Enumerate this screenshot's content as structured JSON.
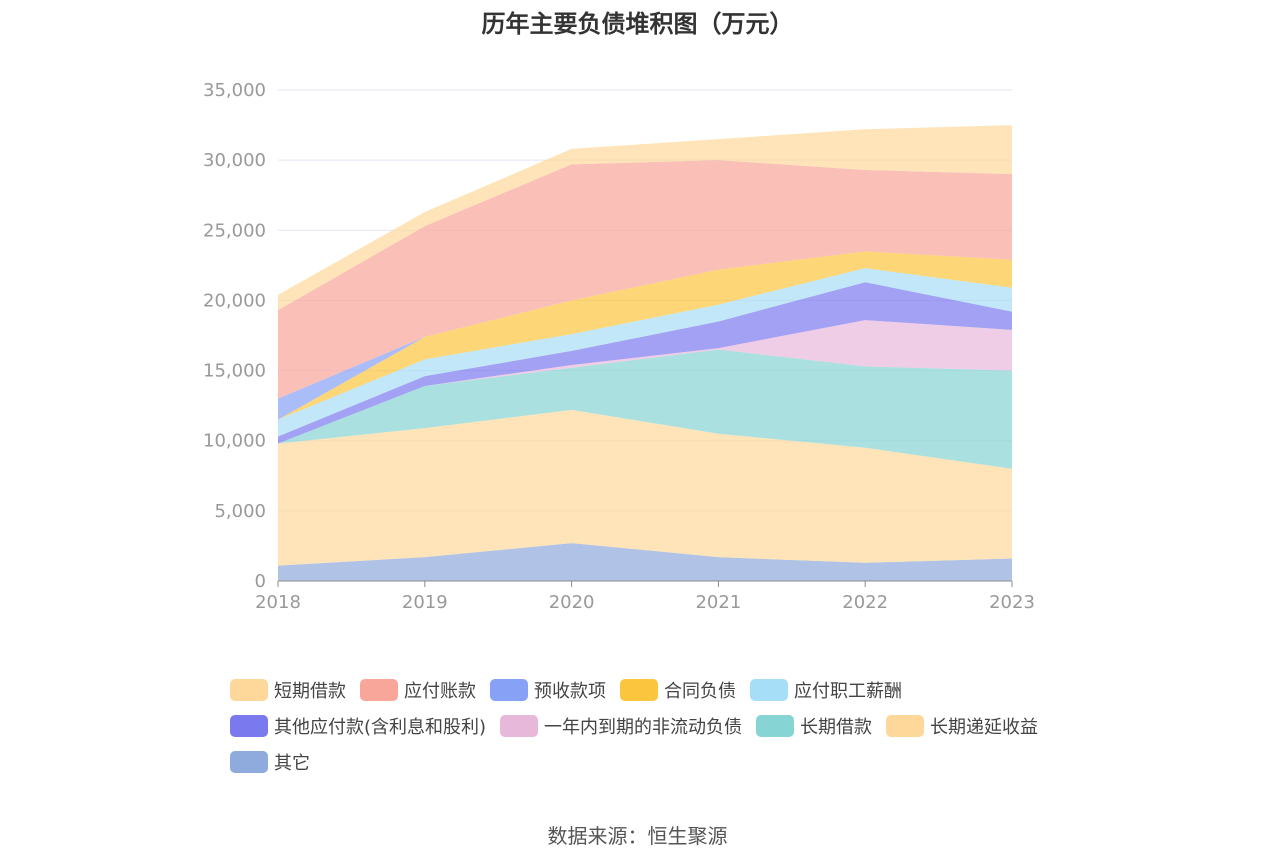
{
  "title": "历年主要负债堆积图（万元）",
  "source": "数据来源：恒生聚源",
  "chart_data": {
    "type": "area",
    "stacked": true,
    "x": [
      "2018",
      "2019",
      "2020",
      "2021",
      "2022",
      "2023"
    ],
    "ylim": [
      0,
      35000
    ],
    "yticks": [
      0,
      5000,
      10000,
      15000,
      20000,
      25000,
      30000,
      35000
    ],
    "ytick_labels": [
      "0",
      "5,000",
      "10,000",
      "15,000",
      "20,000",
      "25,000",
      "30,000",
      "35,000"
    ],
    "grid": true,
    "legend_position": "bottom",
    "series": [
      {
        "name": "其它",
        "color": "#8FAADC",
        "values": [
          1100,
          1700,
          2700,
          1700,
          1300,
          1600
        ]
      },
      {
        "name": "长期递延收益",
        "color": "#FDD89A",
        "values": [
          8700,
          9200,
          9500,
          8800,
          8200,
          6400
        ]
      },
      {
        "name": "长期借款",
        "color": "#86D4D3",
        "values": [
          0,
          3000,
          3000,
          6000,
          5800,
          7000
        ]
      },
      {
        "name": "一年内到期的非流动负债",
        "color": "#E8B8DB",
        "values": [
          0,
          0,
          200,
          100,
          3300,
          2900
        ]
      },
      {
        "name": "其他应付款(含利息和股利)",
        "color": "#7B79EE",
        "values": [
          500,
          700,
          1000,
          1900,
          2700,
          1300
        ]
      },
      {
        "name": "应付职工薪酬",
        "color": "#A6DDF7",
        "values": [
          1200,
          1200,
          1200,
          1200,
          1000,
          1700
        ]
      },
      {
        "name": "合同负债",
        "color": "#FBC53D",
        "values": [
          0,
          1600,
          2400,
          2500,
          1200,
          2000
        ]
      },
      {
        "name": "预收款项",
        "color": "#86A1F6",
        "values": [
          1500,
          0,
          0,
          0,
          0,
          0
        ]
      },
      {
        "name": "应付账款",
        "color": "#F8A59A",
        "values": [
          6300,
          7900,
          9700,
          7800,
          5800,
          6100
        ]
      },
      {
        "name": "短期借款",
        "color": "#FDD89A",
        "values": [
          1100,
          1000,
          1100,
          1500,
          2900,
          3500
        ]
      }
    ],
    "legend_order": [
      "短期借款",
      "应付账款",
      "预收款项",
      "合同负债",
      "应付职工薪酬",
      "其他应付款(含利息和股利)",
      "一年内到期的非流动负债",
      "长期借款",
      "长期递延收益",
      "其它"
    ]
  }
}
